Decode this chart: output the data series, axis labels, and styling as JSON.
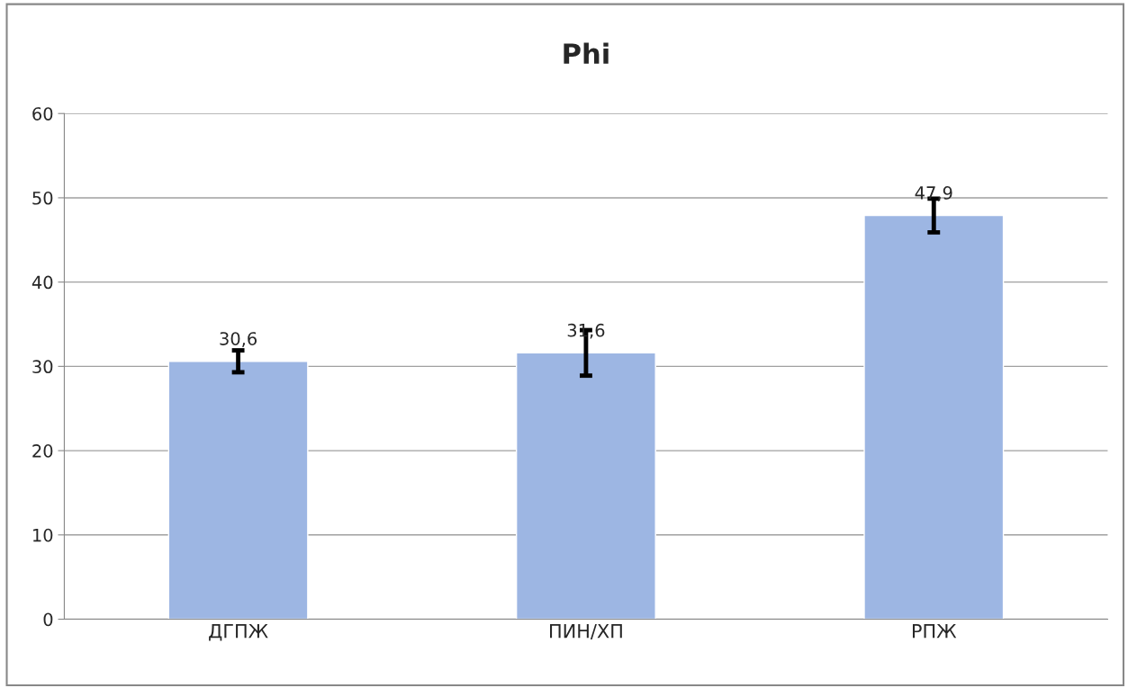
{
  "chart_data": {
    "type": "bar",
    "title": "Phi",
    "categories": [
      "ДГПЖ",
      "ПИН/ХП",
      "РПЖ"
    ],
    "values": [
      30.6,
      31.6,
      47.9
    ],
    "value_labels": [
      "30,6",
      "31,6",
      "47,9"
    ],
    "errors": [
      1.3,
      2.7,
      2.0
    ],
    "color": "#9db6e3",
    "ylim": [
      0,
      60
    ],
    "yticks": [
      0,
      10,
      20,
      30,
      40,
      50,
      60
    ],
    "grid": "y",
    "legend": false
  }
}
